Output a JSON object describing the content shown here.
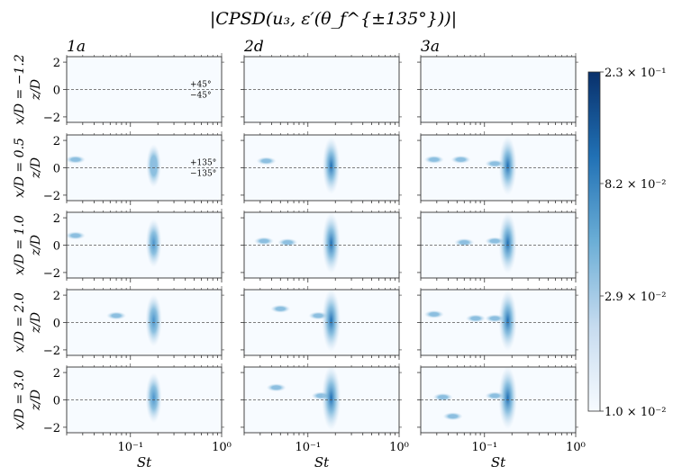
{
  "chart_data": {
    "type": "heatmap",
    "title": "|CPSD(u₃, ε′(θ_f^{±135°}))|",
    "xlabel": "St",
    "ylabel": "z/D",
    "columns": [
      "1a",
      "2d",
      "3a"
    ],
    "rows": [
      {
        "label": "x/D = −1.2"
      },
      {
        "label": "x/D = 0.5"
      },
      {
        "label": "x/D = 1.0"
      },
      {
        "label": "x/D = 2.0"
      },
      {
        "label": "x/D = 3.0"
      }
    ],
    "x_scale": "log",
    "xlim": [
      0.02,
      1.0
    ],
    "x_ticks": [
      {
        "value": 0.1,
        "label": "10⁻¹"
      },
      {
        "value": 1.0,
        "label": "10⁰"
      }
    ],
    "ylim": [
      -2.4,
      2.4
    ],
    "y_ticks": [
      2,
      0,
      -2
    ],
    "y_tick_labels": [
      "2",
      "0",
      "−2"
    ],
    "reference_line": {
      "z": 0,
      "style": "dashed"
    },
    "annotations": [
      {
        "row": 0,
        "col": 0,
        "upper": "+45°",
        "lower": "−45°"
      },
      {
        "row": 1,
        "col": 0,
        "upper": "+135°",
        "lower": "−135°"
      }
    ],
    "colorbar": {
      "scale": "log",
      "min": 0.01,
      "max": 0.23,
      "ticks": [
        {
          "value": 0.23,
          "label": "2.3 × 10⁻¹"
        },
        {
          "value": 0.082,
          "label": "8.2 × 10⁻²"
        },
        {
          "value": 0.029,
          "label": "2.9 × 10⁻²"
        },
        {
          "value": 0.01,
          "label": "1.0 × 10⁻²"
        }
      ],
      "colors": [
        "#f7fbff",
        "#c6dbef",
        "#6baed6",
        "#2171b5",
        "#08306b"
      ]
    },
    "peak_st": 0.18,
    "peaks": [
      [
        0.0,
        0.0,
        0.0
      ],
      [
        0.3,
        0.7,
        0.75
      ],
      [
        0.45,
        0.8,
        0.8
      ],
      [
        0.55,
        0.85,
        0.8
      ],
      [
        0.5,
        0.9,
        0.85
      ]
    ],
    "secondary_features": [
      {
        "row": 1,
        "col": 0,
        "st": 0.025,
        "z": 0.6,
        "level": 0.12
      },
      {
        "row": 1,
        "col": 1,
        "st": 0.035,
        "z": 0.5,
        "level": 0.12
      },
      {
        "row": 1,
        "col": 2,
        "st": 0.028,
        "z": 0.6,
        "level": 0.3
      },
      {
        "row": 1,
        "col": 2,
        "st": 0.055,
        "z": 0.6,
        "level": 0.35
      },
      {
        "row": 1,
        "col": 2,
        "st": 0.13,
        "z": 0.3,
        "level": 0.25
      },
      {
        "row": 2,
        "col": 0,
        "st": 0.025,
        "z": 0.7,
        "level": 0.1
      },
      {
        "row": 2,
        "col": 1,
        "st": 0.033,
        "z": 0.3,
        "level": 0.25
      },
      {
        "row": 2,
        "col": 1,
        "st": 0.06,
        "z": 0.2,
        "level": 0.1
      },
      {
        "row": 2,
        "col": 2,
        "st": 0.06,
        "z": 0.2,
        "level": 0.15
      },
      {
        "row": 2,
        "col": 2,
        "st": 0.13,
        "z": 0.3,
        "level": 0.2
      },
      {
        "row": 3,
        "col": 0,
        "st": 0.07,
        "z": 0.5,
        "level": 0.25
      },
      {
        "row": 3,
        "col": 1,
        "st": 0.05,
        "z": 1.0,
        "level": 0.1
      },
      {
        "row": 3,
        "col": 1,
        "st": 0.13,
        "z": 0.5,
        "level": 0.15
      },
      {
        "row": 3,
        "col": 2,
        "st": 0.028,
        "z": 0.6,
        "level": 0.3
      },
      {
        "row": 3,
        "col": 2,
        "st": 0.08,
        "z": 0.3,
        "level": 0.15
      },
      {
        "row": 3,
        "col": 2,
        "st": 0.13,
        "z": 0.3,
        "level": 0.2
      },
      {
        "row": 4,
        "col": 1,
        "st": 0.045,
        "z": 0.9,
        "level": 0.08
      },
      {
        "row": 4,
        "col": 1,
        "st": 0.14,
        "z": 0.3,
        "level": 0.2
      },
      {
        "row": 4,
        "col": 2,
        "st": 0.035,
        "z": 0.2,
        "level": 0.15
      },
      {
        "row": 4,
        "col": 2,
        "st": 0.045,
        "z": -1.2,
        "level": 0.15
      },
      {
        "row": 4,
        "col": 2,
        "st": 0.13,
        "z": 0.3,
        "level": 0.2
      }
    ]
  }
}
